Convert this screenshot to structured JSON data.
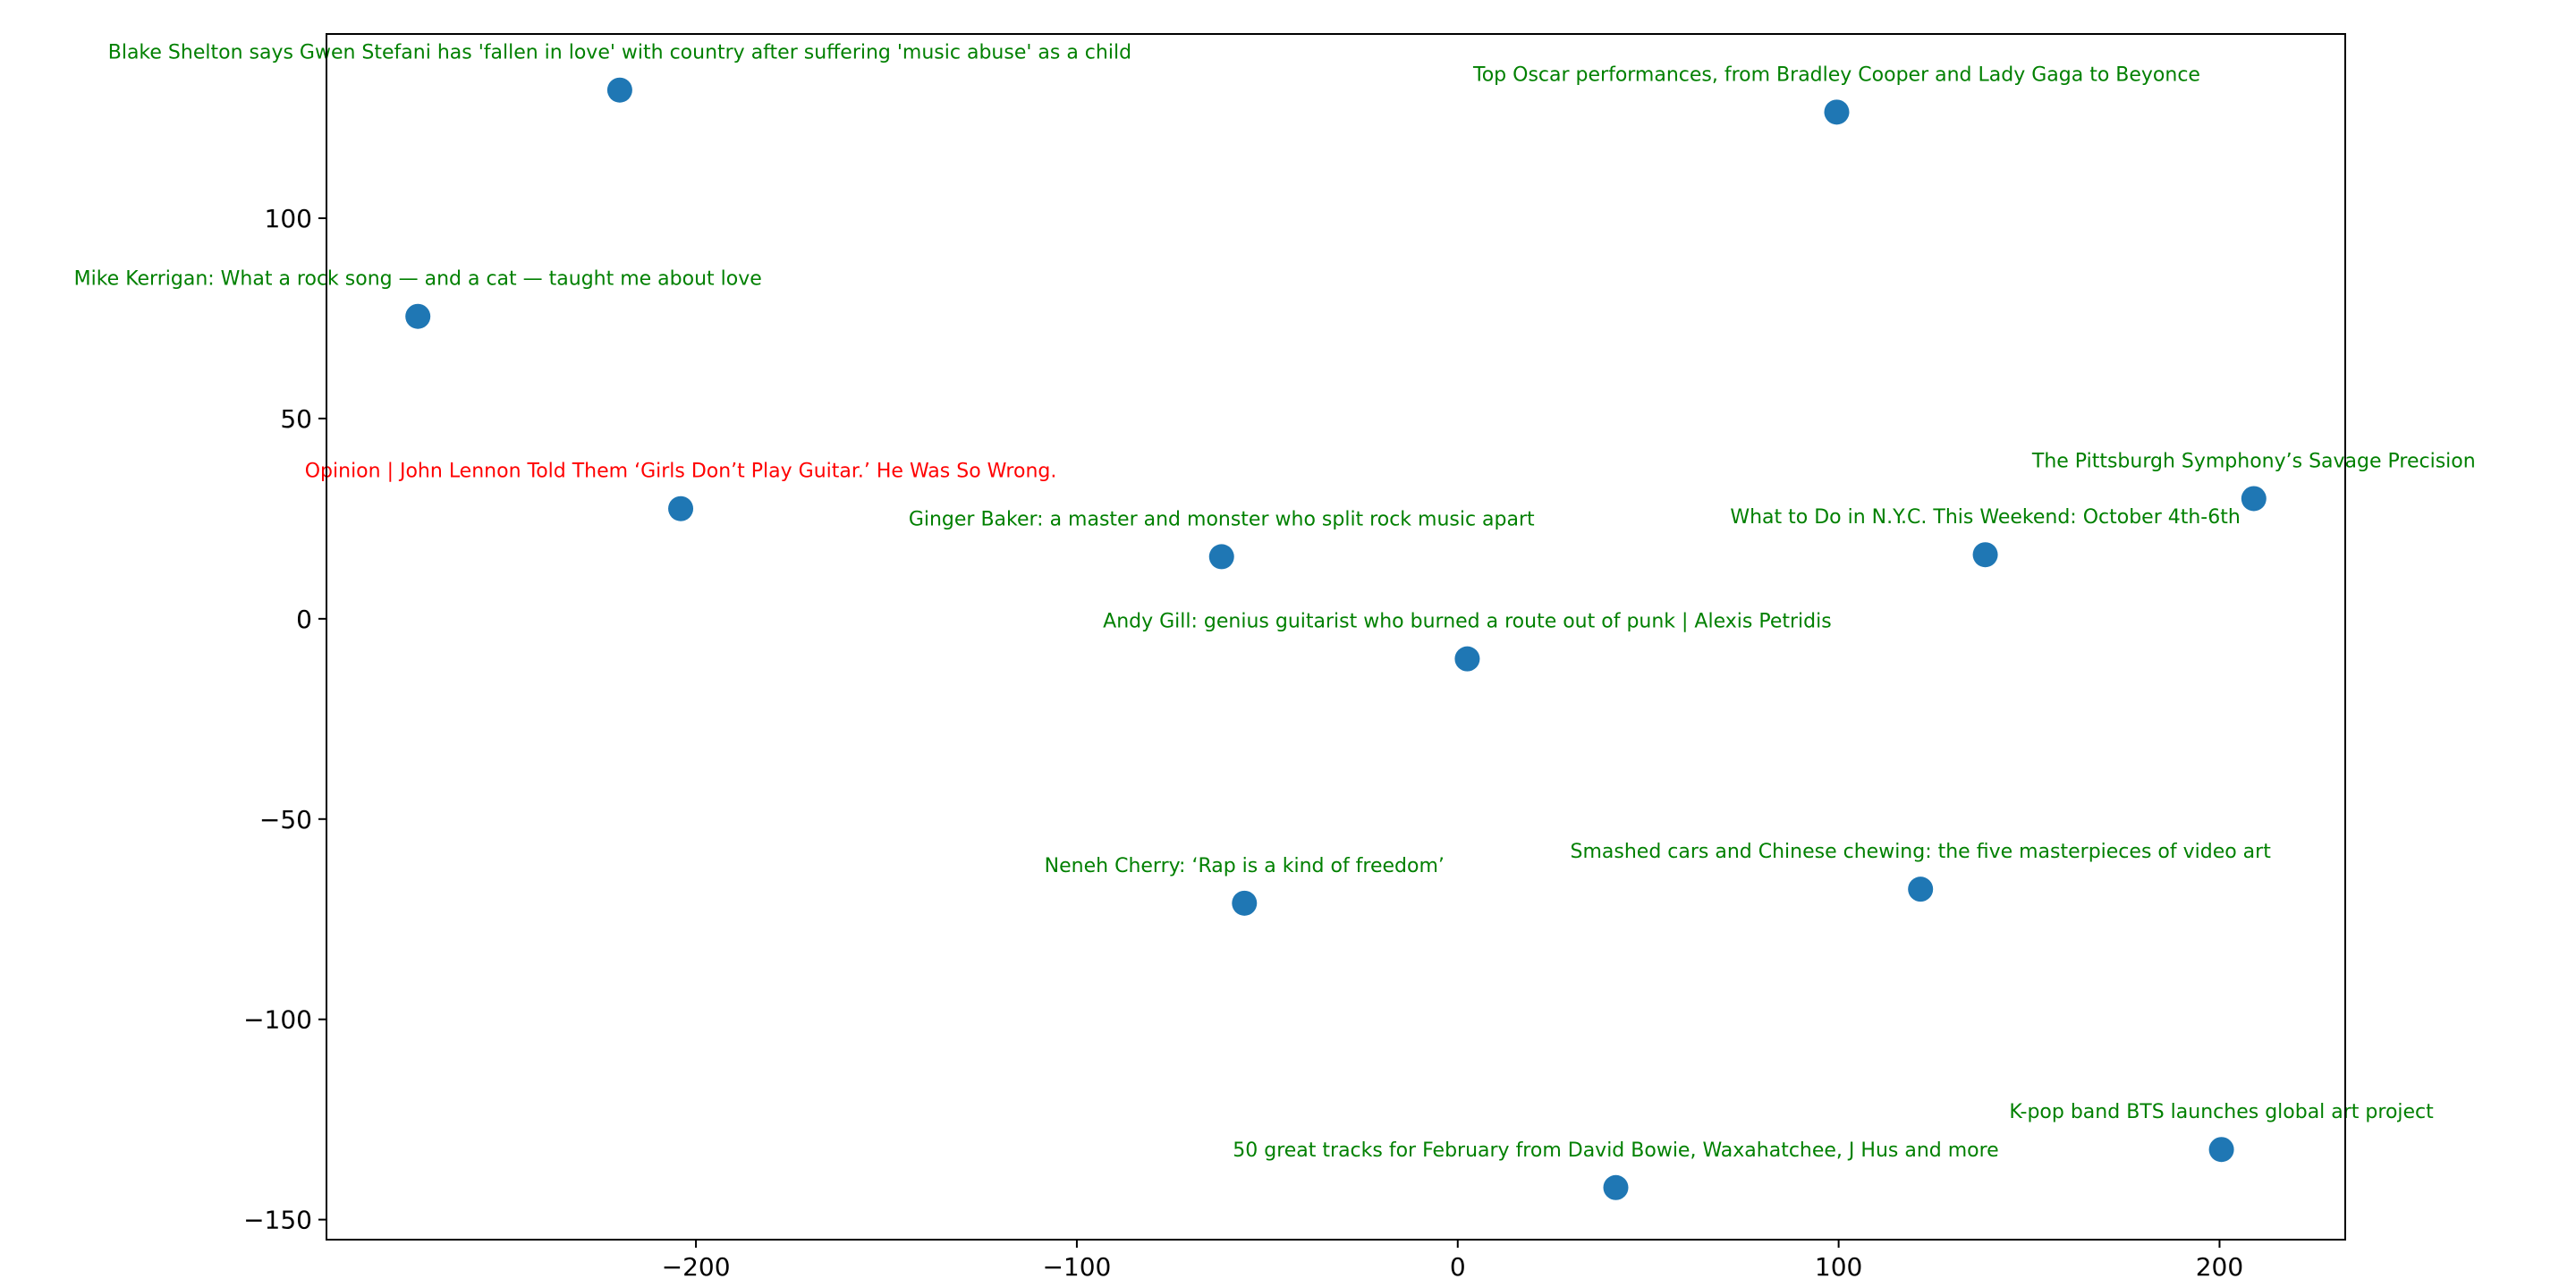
{
  "chart_data": {
    "type": "scatter",
    "title": "",
    "xlabel": "",
    "ylabel": "",
    "xlim": [
      -297,
      233
    ],
    "ylim": [
      -155,
      146
    ],
    "xticks": [
      -200,
      -100,
      0,
      100,
      200
    ],
    "yticks": [
      -150,
      -100,
      -50,
      0,
      50,
      100
    ],
    "xtick_labels": [
      "−200",
      "−100",
      "0",
      "100",
      "200"
    ],
    "ytick_labels": [
      "−150",
      "−100",
      "−50",
      "0",
      "50",
      "100"
    ],
    "grid": false,
    "marker_color": "#1f77b4",
    "colors": {
      "relevant": "#008000",
      "query": "#ff0000"
    },
    "points": [
      {
        "x": -220,
        "y": 132,
        "label": "Blake Shelton says Gwen Stefani has 'fallen in love' with country after suffering 'music abuse' as a child",
        "group": "relevant"
      },
      {
        "x": 99.5,
        "y": 126.5,
        "label": "Top Oscar performances, from Bradley Cooper and Lady Gaga to Beyonce",
        "group": "relevant"
      },
      {
        "x": -273,
        "y": 75.5,
        "label": "Mike Kerrigan: What a rock song — and a cat — taught me about love",
        "group": "relevant"
      },
      {
        "x": -204,
        "y": 27.5,
        "label": "Opinion | John Lennon Told Them ‘Girls Don’t Play Guitar.’ He Was So Wrong.",
        "group": "query"
      },
      {
        "x": 209,
        "y": 30,
        "label": "The Pittsburgh Symphony’s Savage Precision",
        "group": "relevant"
      },
      {
        "x": -62,
        "y": 15.5,
        "label": "Ginger Baker: a master and monster who split rock music apart",
        "group": "relevant"
      },
      {
        "x": 138.5,
        "y": 16,
        "label": "What to Do in N.Y.C. This Weekend: October 4th-6th",
        "group": "relevant"
      },
      {
        "x": 2.5,
        "y": -10,
        "label": "Andy Gill: genius guitarist who burned a route out of punk | Alexis Petridis",
        "group": "relevant"
      },
      {
        "x": -56,
        "y": -71,
        "label": "Neneh Cherry: ‘Rap is a kind of freedom’",
        "group": "relevant"
      },
      {
        "x": 121.5,
        "y": -67.5,
        "label": "Smashed cars and Chinese chewing: the five masterpieces of video art",
        "group": "relevant"
      },
      {
        "x": 200.5,
        "y": -132.5,
        "label": "K-pop band BTS launches global art project",
        "group": "relevant"
      },
      {
        "x": 41.5,
        "y": -142,
        "label": "50 great tracks for February from David Bowie, Waxahatchee, J Hus and more",
        "group": "relevant"
      }
    ]
  }
}
